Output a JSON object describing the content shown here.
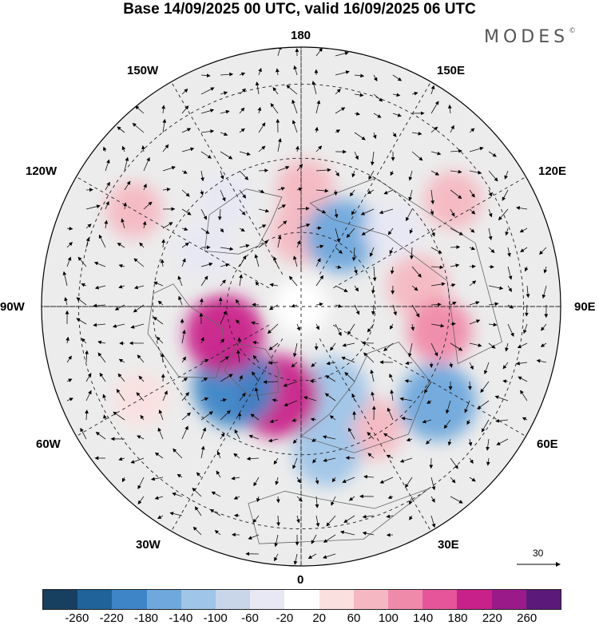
{
  "title": "Base 14/09/2025 00 UTC, valid 16/09/2025 06 UTC",
  "brand": "MODES",
  "brand_mark": "©",
  "longitude_labels": {
    "n180": "180",
    "w150": "150W",
    "e150": "150E",
    "w120": "120W",
    "e120": "120E",
    "w90": "90W",
    "e90": "90E",
    "w60": "60W",
    "e60": "60E",
    "w30": "30W",
    "e30": "30E",
    "s0": "0"
  },
  "reference_vector": {
    "label": "30"
  },
  "colorbar": {
    "colors": [
      "#173f5f",
      "#20639b",
      "#3d85c6",
      "#6fa8dc",
      "#9fc5e8",
      "#c9d6ea",
      "#e8e8f4",
      "#ffffff",
      "#fbe0e0",
      "#f5b8c2",
      "#f08aaa",
      "#e6559a",
      "#c9218a",
      "#9b1a8a",
      "#5b1a7a"
    ],
    "ticks": [
      "-260",
      "-220",
      "-180",
      "-140",
      "-100",
      "-60",
      "-20",
      "20",
      "60",
      "100",
      "140",
      "180",
      "220",
      "260"
    ]
  },
  "anomaly_cells": [
    {
      "lon": 180,
      "lat": 70,
      "value": 90
    },
    {
      "lon": 178,
      "lat": 58,
      "value": 70
    },
    {
      "lon": 150,
      "lat": 68,
      "value": -150
    },
    {
      "lon": 130,
      "lat": 58,
      "value": -60
    },
    {
      "lon": 100,
      "lat": 58,
      "value": 90
    },
    {
      "lon": 80,
      "lat": 52,
      "value": 100
    },
    {
      "lon": 55,
      "lat": 45,
      "value": -170
    },
    {
      "lon": 30,
      "lat": 52,
      "value": 90
    },
    {
      "lon": 20,
      "lat": 65,
      "value": -140
    },
    {
      "lon": 10,
      "lat": 50,
      "value": -120
    },
    {
      "lon": 345,
      "lat": 65,
      "value": 200
    },
    {
      "lon": 320,
      "lat": 62,
      "value": -200
    },
    {
      "lon": 290,
      "lat": 68,
      "value": 180
    },
    {
      "lon": 240,
      "lat": 60,
      "value": -60
    },
    {
      "lon": 215,
      "lat": 55,
      "value": -50
    },
    {
      "lon": 240,
      "lat": 38,
      "value": 60
    },
    {
      "lon": 300,
      "lat": 40,
      "value": 50
    },
    {
      "lon": 125,
      "lat": 40,
      "value": 70
    }
  ]
}
